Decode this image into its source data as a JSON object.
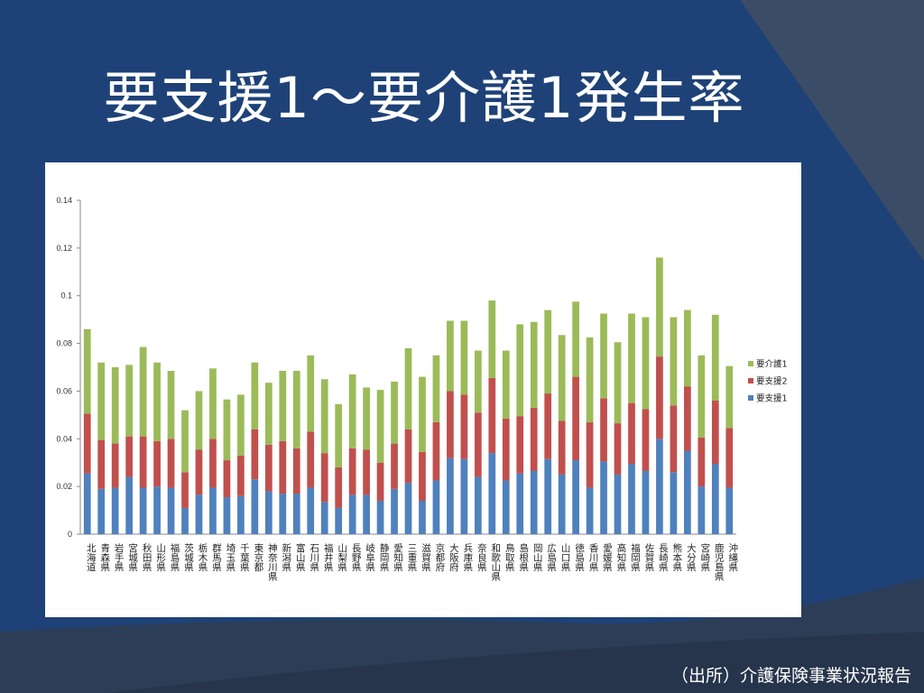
{
  "slide": {
    "title": "要支援1～要介護1発生率",
    "source": "（出所）介護保険事業状況報告"
  },
  "colors": {
    "background": "#1e4277",
    "要支援1": "#4f81bd",
    "要支援2": "#c0504d",
    "要介護1": "#9bbb59"
  },
  "chart_data": {
    "type": "bar",
    "stacked": true,
    "ylim": [
      0,
      0.14
    ],
    "yticks": [
      "0",
      "0.02",
      "0.04",
      "0.06",
      "0.08",
      "0.1",
      "0.12",
      "0.14"
    ],
    "legend_position": "right",
    "grid": false,
    "categories": [
      "北海道",
      "青森県",
      "岩手県",
      "宮城県",
      "秋田県",
      "山形県",
      "福島県",
      "茨城県",
      "栃木県",
      "群馬県",
      "埼玉県",
      "千葉県",
      "東京都",
      "神奈川県",
      "新潟県",
      "富山県",
      "石川県",
      "福井県",
      "山梨県",
      "長野県",
      "岐阜県",
      "静岡県",
      "愛知県",
      "三重県",
      "滋賀県",
      "京都府",
      "大阪府",
      "兵庫県",
      "奈良県",
      "和歌山県",
      "鳥取県",
      "島根県",
      "岡山県",
      "広島県",
      "山口県",
      "徳島県",
      "香川県",
      "愛媛県",
      "高知県",
      "福岡県",
      "佐賀県",
      "長崎県",
      "熊本県",
      "大分県",
      "宮崎県",
      "鹿児島県",
      "沖縄県"
    ],
    "series": [
      {
        "name": "要支援1",
        "values": [
          0.0255,
          0.019,
          0.0195,
          0.024,
          0.0195,
          0.02,
          0.0195,
          0.011,
          0.0165,
          0.0195,
          0.0155,
          0.016,
          0.023,
          0.018,
          0.017,
          0.017,
          0.0195,
          0.0135,
          0.011,
          0.0165,
          0.0165,
          0.014,
          0.019,
          0.0215,
          0.014,
          0.0225,
          0.032,
          0.0315,
          0.024,
          0.034,
          0.0225,
          0.0255,
          0.0265,
          0.0315,
          0.025,
          0.031,
          0.0195,
          0.0305,
          0.025,
          0.0295,
          0.0265,
          0.04,
          0.026,
          0.035,
          0.02,
          0.0295,
          0.0195
        ]
      },
      {
        "name": "要支援2",
        "values": [
          0.025,
          0.0205,
          0.0185,
          0.017,
          0.0215,
          0.019,
          0.0205,
          0.015,
          0.019,
          0.0205,
          0.0155,
          0.017,
          0.021,
          0.0195,
          0.022,
          0.019,
          0.0235,
          0.0205,
          0.017,
          0.0195,
          0.019,
          0.016,
          0.019,
          0.0225,
          0.0205,
          0.0245,
          0.028,
          0.027,
          0.027,
          0.0315,
          0.026,
          0.024,
          0.0265,
          0.0275,
          0.0225,
          0.035,
          0.0275,
          0.0265,
          0.0215,
          0.0255,
          0.026,
          0.0345,
          0.028,
          0.027,
          0.0205,
          0.0265,
          0.025
        ]
      },
      {
        "name": "要介護1",
        "values": [
          0.0355,
          0.0325,
          0.032,
          0.03,
          0.0375,
          0.033,
          0.0285,
          0.026,
          0.0245,
          0.0295,
          0.0255,
          0.0255,
          0.028,
          0.026,
          0.0295,
          0.0325,
          0.032,
          0.031,
          0.0265,
          0.031,
          0.026,
          0.0305,
          0.026,
          0.034,
          0.0315,
          0.028,
          0.0295,
          0.031,
          0.026,
          0.0325,
          0.0285,
          0.0385,
          0.036,
          0.035,
          0.036,
          0.0315,
          0.0355,
          0.0355,
          0.034,
          0.0375,
          0.0385,
          0.0415,
          0.037,
          0.032,
          0.0345,
          0.036,
          0.026
        ]
      }
    ]
  }
}
